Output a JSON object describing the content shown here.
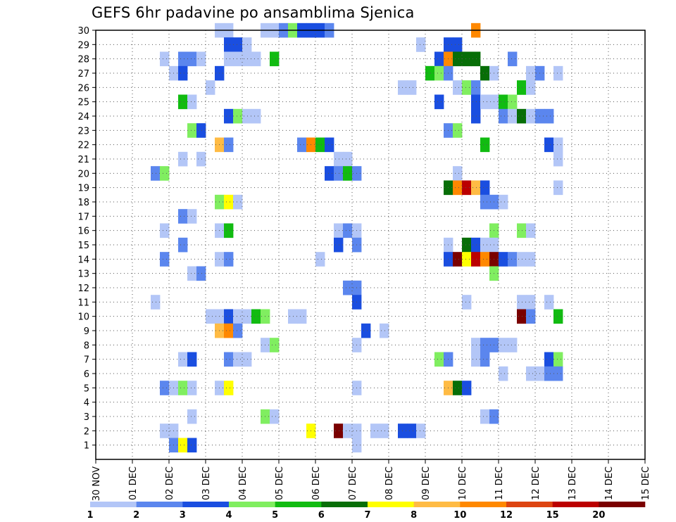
{
  "chart_data": {
    "type": "heatmap",
    "title": "GEFS 6hr padavine po ansamblima Sjenica",
    "xlabel": "",
    "ylabel": "",
    "x_ticks": [
      "30 NOV",
      "01 DEC",
      "02 DEC",
      "03 DEC",
      "04 DEC",
      "05 DEC",
      "06 DEC",
      "07 DEC",
      "08 DEC",
      "09 DEC",
      "10 DEC",
      "11 DEC",
      "12 DEC",
      "13 DEC",
      "14 DEC",
      "15 DEC"
    ],
    "y_ticks": [
      "1",
      "2",
      "3",
      "4",
      "5",
      "6",
      "7",
      "8",
      "9",
      "10",
      "11",
      "12",
      "13",
      "14",
      "15",
      "16",
      "17",
      "18",
      "19",
      "20",
      "21",
      "22",
      "23",
      "24",
      "25",
      "26",
      "27",
      "28",
      "29",
      "30"
    ],
    "x_range": [
      0,
      15
    ],
    "y_range": [
      0,
      30
    ],
    "steps_per_day": 4,
    "grid": "dotted",
    "colorbar": {
      "levels": [
        "1",
        "2",
        "3",
        "4",
        "5",
        "6",
        "7",
        "8",
        "10",
        "12",
        "15",
        "20"
      ],
      "colors": [
        "#b3c6f7",
        "#5b86ee",
        "#1a4ee0",
        "#80ee60",
        "#11bb11",
        "#076e07",
        "#ffff00",
        "#ffbb44",
        "#ff8800",
        "#dd4411",
        "#bb0000",
        "#7a0000"
      ]
    },
    "cells": [
      [
        30,
        13,
        1
      ],
      [
        30,
        14,
        1
      ],
      [
        30,
        18,
        1
      ],
      [
        30,
        19,
        1
      ],
      [
        30,
        20,
        2
      ],
      [
        30,
        21,
        4
      ],
      [
        30,
        22,
        3
      ],
      [
        30,
        23,
        3
      ],
      [
        30,
        24,
        3
      ],
      [
        30,
        25,
        2
      ],
      [
        30,
        41,
        9
      ],
      [
        29,
        14,
        3
      ],
      [
        29,
        15,
        3
      ],
      [
        29,
        16,
        1
      ],
      [
        29,
        35,
        1
      ],
      [
        29,
        38,
        3
      ],
      [
        29,
        39,
        3
      ],
      [
        28,
        7,
        1
      ],
      [
        28,
        9,
        2
      ],
      [
        28,
        10,
        2
      ],
      [
        28,
        11,
        1
      ],
      [
        28,
        14,
        1
      ],
      [
        28,
        15,
        1
      ],
      [
        28,
        16,
        1
      ],
      [
        28,
        17,
        1
      ],
      [
        28,
        19,
        5
      ],
      [
        28,
        37,
        3
      ],
      [
        28,
        38,
        9
      ],
      [
        28,
        39,
        6
      ],
      [
        28,
        40,
        6
      ],
      [
        28,
        41,
        6
      ],
      [
        28,
        45,
        2
      ],
      [
        27,
        8,
        1
      ],
      [
        27,
        9,
        3
      ],
      [
        27,
        13,
        3
      ],
      [
        27,
        36,
        5
      ],
      [
        27,
        37,
        4
      ],
      [
        27,
        38,
        2
      ],
      [
        27,
        42,
        6
      ],
      [
        27,
        43,
        1
      ],
      [
        27,
        47,
        1
      ],
      [
        27,
        48,
        2
      ],
      [
        27,
        50,
        1
      ],
      [
        26,
        12,
        1
      ],
      [
        26,
        33,
        1
      ],
      [
        26,
        34,
        1
      ],
      [
        26,
        39,
        1
      ],
      [
        26,
        40,
        4
      ],
      [
        26,
        41,
        2
      ],
      [
        26,
        46,
        5
      ],
      [
        26,
        47,
        1
      ],
      [
        25,
        9,
        5
      ],
      [
        25,
        10,
        1
      ],
      [
        25,
        37,
        3
      ],
      [
        25,
        41,
        3
      ],
      [
        25,
        42,
        1
      ],
      [
        25,
        43,
        1
      ],
      [
        25,
        44,
        5
      ],
      [
        25,
        45,
        4
      ],
      [
        24,
        14,
        3
      ],
      [
        24,
        15,
        4
      ],
      [
        24,
        16,
        1
      ],
      [
        24,
        17,
        1
      ],
      [
        24,
        41,
        3
      ],
      [
        24,
        44,
        2
      ],
      [
        24,
        45,
        1
      ],
      [
        24,
        46,
        6
      ],
      [
        24,
        47,
        1
      ],
      [
        24,
        48,
        2
      ],
      [
        24,
        49,
        2
      ],
      [
        23,
        10,
        4
      ],
      [
        23,
        11,
        3
      ],
      [
        23,
        38,
        2
      ],
      [
        23,
        39,
        4
      ],
      [
        22,
        13,
        8
      ],
      [
        22,
        14,
        2
      ],
      [
        22,
        22,
        2
      ],
      [
        22,
        23,
        9
      ],
      [
        22,
        24,
        5
      ],
      [
        22,
        25,
        3
      ],
      [
        22,
        42,
        5
      ],
      [
        22,
        49,
        3
      ],
      [
        22,
        50,
        1
      ],
      [
        21,
        9,
        1
      ],
      [
        21,
        11,
        1
      ],
      [
        21,
        26,
        1
      ],
      [
        21,
        27,
        1
      ],
      [
        21,
        50,
        1
      ],
      [
        20,
        6,
        2
      ],
      [
        20,
        7,
        4
      ],
      [
        20,
        25,
        3
      ],
      [
        20,
        26,
        2
      ],
      [
        20,
        27,
        5
      ],
      [
        20,
        28,
        2
      ],
      [
        20,
        39,
        1
      ],
      [
        19,
        38,
        6
      ],
      [
        19,
        39,
        9
      ],
      [
        19,
        40,
        11
      ],
      [
        19,
        41,
        8
      ],
      [
        19,
        42,
        3
      ],
      [
        19,
        50,
        1
      ],
      [
        18,
        13,
        4
      ],
      [
        18,
        14,
        7
      ],
      [
        18,
        15,
        1
      ],
      [
        18,
        42,
        2
      ],
      [
        18,
        43,
        2
      ],
      [
        18,
        44,
        1
      ],
      [
        17,
        9,
        2
      ],
      [
        17,
        10,
        1
      ],
      [
        16,
        7,
        1
      ],
      [
        16,
        13,
        1
      ],
      [
        16,
        14,
        5
      ],
      [
        16,
        26,
        1
      ],
      [
        16,
        27,
        2
      ],
      [
        16,
        28,
        1
      ],
      [
        16,
        43,
        4
      ],
      [
        16,
        46,
        4
      ],
      [
        16,
        47,
        1
      ],
      [
        15,
        9,
        2
      ],
      [
        15,
        26,
        3
      ],
      [
        15,
        28,
        2
      ],
      [
        15,
        38,
        1
      ],
      [
        15,
        40,
        6
      ],
      [
        15,
        41,
        3
      ],
      [
        15,
        42,
        1
      ],
      [
        15,
        43,
        1
      ],
      [
        14,
        7,
        2
      ],
      [
        14,
        13,
        1
      ],
      [
        14,
        14,
        2
      ],
      [
        14,
        24,
        1
      ],
      [
        14,
        38,
        3
      ],
      [
        14,
        39,
        12
      ],
      [
        14,
        40,
        7
      ],
      [
        14,
        41,
        11
      ],
      [
        14,
        42,
        9
      ],
      [
        14,
        43,
        12
      ],
      [
        14,
        44,
        3
      ],
      [
        14,
        45,
        2
      ],
      [
        14,
        46,
        1
      ],
      [
        14,
        47,
        1
      ],
      [
        13,
        10,
        1
      ],
      [
        13,
        11,
        2
      ],
      [
        13,
        43,
        4
      ],
      [
        12,
        27,
        2
      ],
      [
        12,
        28,
        2
      ],
      [
        11,
        6,
        1
      ],
      [
        11,
        28,
        3
      ],
      [
        11,
        40,
        1
      ],
      [
        11,
        46,
        1
      ],
      [
        11,
        47,
        1
      ],
      [
        11,
        49,
        1
      ],
      [
        10,
        12,
        1
      ],
      [
        10,
        13,
        1
      ],
      [
        10,
        14,
        3
      ],
      [
        10,
        15,
        1
      ],
      [
        10,
        16,
        1
      ],
      [
        10,
        17,
        5
      ],
      [
        10,
        18,
        4
      ],
      [
        10,
        21,
        1
      ],
      [
        10,
        22,
        1
      ],
      [
        10,
        46,
        12
      ],
      [
        10,
        47,
        2
      ],
      [
        10,
        50,
        5
      ],
      [
        9,
        13,
        8
      ],
      [
        9,
        14,
        9
      ],
      [
        9,
        15,
        2
      ],
      [
        9,
        29,
        3
      ],
      [
        9,
        31,
        1
      ],
      [
        8,
        18,
        1
      ],
      [
        8,
        19,
        4
      ],
      [
        8,
        28,
        1
      ],
      [
        8,
        41,
        1
      ],
      [
        8,
        42,
        2
      ],
      [
        8,
        43,
        2
      ],
      [
        8,
        44,
        1
      ],
      [
        8,
        45,
        1
      ],
      [
        7,
        9,
        1
      ],
      [
        7,
        10,
        3
      ],
      [
        7,
        14,
        2
      ],
      [
        7,
        15,
        1
      ],
      [
        7,
        16,
        1
      ],
      [
        7,
        37,
        4
      ],
      [
        7,
        38,
        2
      ],
      [
        7,
        41,
        1
      ],
      [
        7,
        42,
        2
      ],
      [
        7,
        49,
        3
      ],
      [
        7,
        50,
        4
      ],
      [
        6,
        44,
        1
      ],
      [
        6,
        47,
        1
      ],
      [
        6,
        48,
        1
      ],
      [
        6,
        49,
        2
      ],
      [
        6,
        50,
        2
      ],
      [
        5,
        7,
        2
      ],
      [
        5,
        8,
        1
      ],
      [
        5,
        9,
        4
      ],
      [
        5,
        10,
        1
      ],
      [
        5,
        13,
        1
      ],
      [
        5,
        14,
        7
      ],
      [
        5,
        28,
        1
      ],
      [
        5,
        38,
        8
      ],
      [
        5,
        39,
        6
      ],
      [
        5,
        40,
        3
      ],
      [
        3,
        10,
        1
      ],
      [
        3,
        18,
        4
      ],
      [
        3,
        19,
        1
      ],
      [
        3,
        42,
        1
      ],
      [
        3,
        43,
        2
      ],
      [
        2,
        7,
        1
      ],
      [
        2,
        8,
        1
      ],
      [
        2,
        23,
        7
      ],
      [
        2,
        26,
        12
      ],
      [
        2,
        27,
        1
      ],
      [
        2,
        28,
        1
      ],
      [
        2,
        30,
        1
      ],
      [
        2,
        31,
        1
      ],
      [
        2,
        33,
        3
      ],
      [
        2,
        34,
        3
      ],
      [
        2,
        35,
        1
      ],
      [
        1,
        8,
        2
      ],
      [
        1,
        9,
        7
      ],
      [
        1,
        10,
        3
      ],
      [
        1,
        28,
        1
      ]
    ]
  }
}
